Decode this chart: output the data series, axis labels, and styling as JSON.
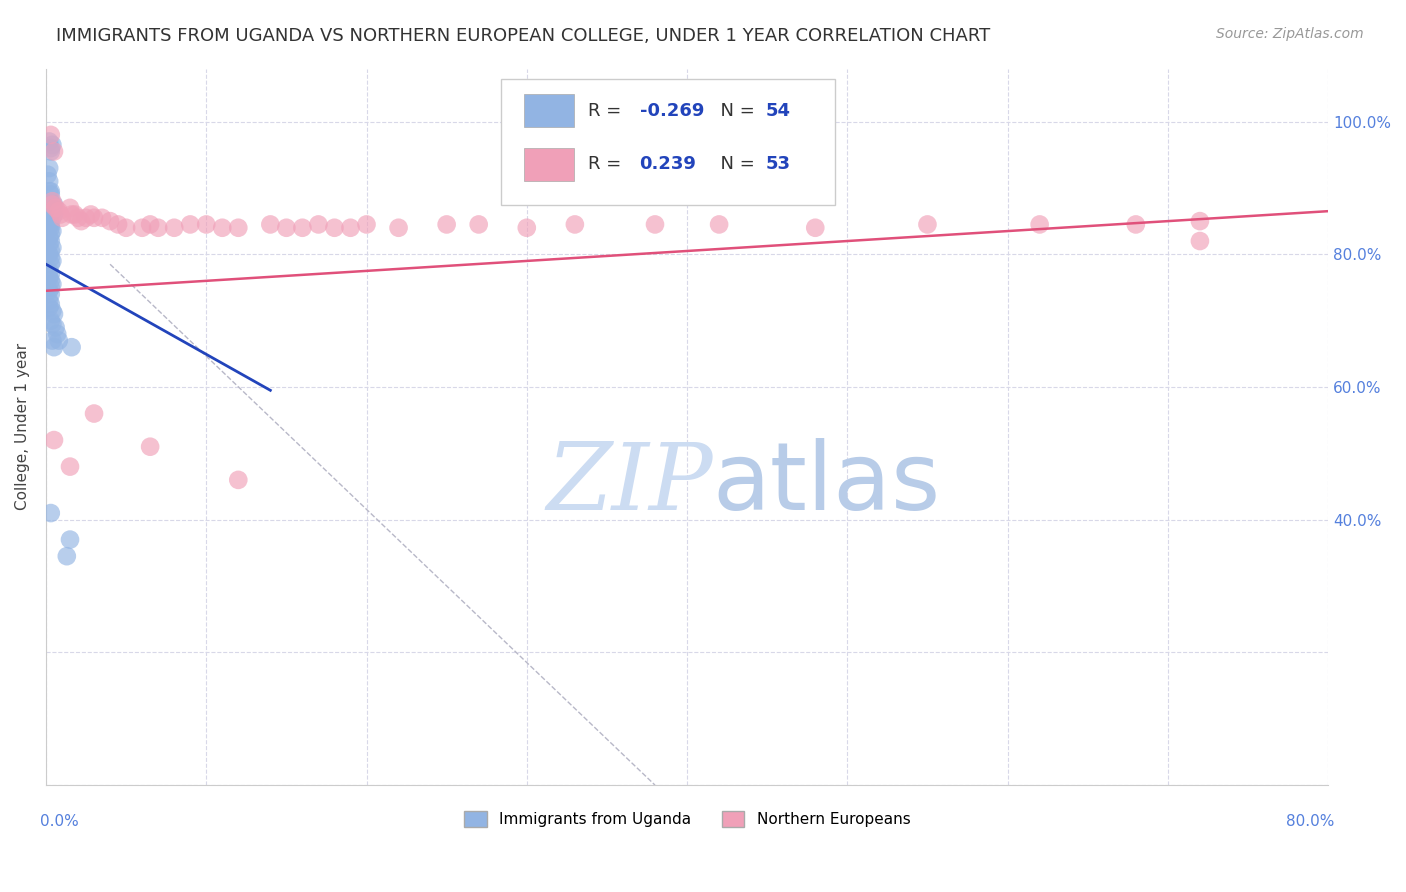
{
  "title": "IMMIGRANTS FROM UGANDA VS NORTHERN EUROPEAN COLLEGE, UNDER 1 YEAR CORRELATION CHART",
  "source": "Source: ZipAtlas.com",
  "ylabel": "College, Under 1 year",
  "xlim": [
    0.0,
    0.8
  ],
  "ylim": [
    0.0,
    1.08
  ],
  "blue_color": "#92b4e3",
  "blue_line_color": "#2244bb",
  "pink_color": "#f0a0b8",
  "pink_line_color": "#e0507a",
  "watermark_zip_color": "#c8d8f0",
  "watermark_atlas_color": "#b8c8e8",
  "background_color": "#ffffff",
  "grid_color": "#d8d8e8",
  "title_fontsize": 13,
  "source_fontsize": 10,
  "right_tick_color": "#5580dd",
  "bottom_tick_color": "#5580dd",
  "blue_x": [
    0.002,
    0.003,
    0.004,
    0.003,
    0.002,
    0.001,
    0.002,
    0.003,
    0.002,
    0.003,
    0.004,
    0.004,
    0.005,
    0.005,
    0.003,
    0.004,
    0.003,
    0.002,
    0.003,
    0.004,
    0.003,
    0.002,
    0.003,
    0.002,
    0.004,
    0.003,
    0.002,
    0.003,
    0.004,
    0.003,
    0.002,
    0.003,
    0.002,
    0.003,
    0.004,
    0.003,
    0.002,
    0.003,
    0.002,
    0.003,
    0.002,
    0.004,
    0.005,
    0.003,
    0.004,
    0.006,
    0.007,
    0.008,
    0.003,
    0.015,
    0.013,
    0.016,
    0.004,
    0.005
  ],
  "blue_y": [
    0.97,
    0.96,
    0.965,
    0.955,
    0.93,
    0.92,
    0.91,
    0.895,
    0.895,
    0.89,
    0.875,
    0.87,
    0.875,
    0.86,
    0.86,
    0.855,
    0.845,
    0.845,
    0.84,
    0.835,
    0.83,
    0.825,
    0.82,
    0.815,
    0.81,
    0.805,
    0.8,
    0.795,
    0.79,
    0.785,
    0.775,
    0.77,
    0.765,
    0.76,
    0.755,
    0.75,
    0.745,
    0.74,
    0.73,
    0.725,
    0.72,
    0.715,
    0.71,
    0.7,
    0.695,
    0.69,
    0.68,
    0.67,
    0.41,
    0.37,
    0.345,
    0.66,
    0.67,
    0.66
  ],
  "pink_x": [
    0.003,
    0.005,
    0.004,
    0.004,
    0.006,
    0.008,
    0.009,
    0.01,
    0.015,
    0.016,
    0.018,
    0.02,
    0.022,
    0.025,
    0.028,
    0.03,
    0.035,
    0.04,
    0.045,
    0.05,
    0.06,
    0.065,
    0.07,
    0.08,
    0.09,
    0.1,
    0.11,
    0.12,
    0.14,
    0.15,
    0.16,
    0.17,
    0.18,
    0.19,
    0.2,
    0.22,
    0.25,
    0.27,
    0.3,
    0.33,
    0.38,
    0.42,
    0.48,
    0.55,
    0.62,
    0.68,
    0.72,
    0.72,
    0.005,
    0.015,
    0.03,
    0.065,
    0.12
  ],
  "pink_y": [
    0.98,
    0.955,
    0.88,
    0.875,
    0.87,
    0.865,
    0.86,
    0.855,
    0.87,
    0.86,
    0.86,
    0.855,
    0.85,
    0.855,
    0.86,
    0.855,
    0.855,
    0.85,
    0.845,
    0.84,
    0.84,
    0.845,
    0.84,
    0.84,
    0.845,
    0.845,
    0.84,
    0.84,
    0.845,
    0.84,
    0.84,
    0.845,
    0.84,
    0.84,
    0.845,
    0.84,
    0.845,
    0.845,
    0.84,
    0.845,
    0.845,
    0.845,
    0.84,
    0.845,
    0.845,
    0.845,
    0.85,
    0.82,
    0.52,
    0.48,
    0.56,
    0.51,
    0.46
  ],
  "blue_line_x": [
    0.0,
    0.14
  ],
  "blue_line_y": [
    0.785,
    0.595
  ],
  "pink_line_x": [
    0.0,
    0.8
  ],
  "pink_line_y": [
    0.745,
    0.865
  ],
  "dashed_line_x": [
    0.04,
    0.38
  ],
  "dashed_line_y": [
    0.785,
    0.0
  ]
}
